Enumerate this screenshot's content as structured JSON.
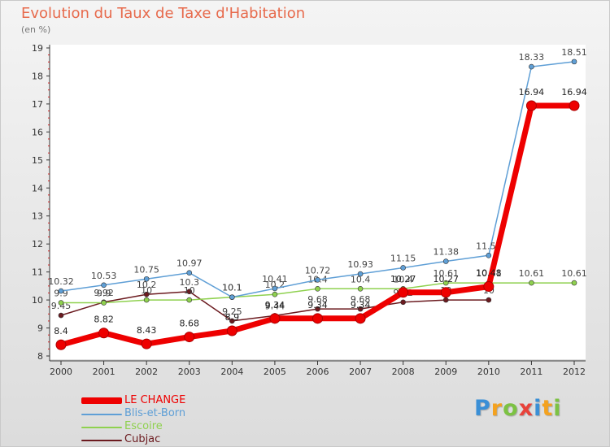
{
  "title": "Evolution du Taux de Taxe d'Habitation",
  "subtitle": "(en %)",
  "logo": {
    "text": "Proxiti",
    "letters": [
      {
        "ch": "P",
        "color": "#3a8fd6"
      },
      {
        "ch": "r",
        "color": "#f4a21f"
      },
      {
        "ch": "o",
        "color": "#7cc243"
      },
      {
        "ch": "x",
        "color": "#e8423a"
      },
      {
        "ch": "i",
        "color": "#3a8fd6"
      },
      {
        "ch": "t",
        "color": "#f4a21f"
      },
      {
        "ch": "i",
        "color": "#7cc243"
      }
    ]
  },
  "chart_data": {
    "type": "line",
    "x": [
      "2000",
      "2001",
      "2002",
      "2003",
      "2004",
      "2005",
      "2006",
      "2007",
      "2008",
      "2009",
      "2010",
      "2011",
      "2012"
    ],
    "ylim": [
      8,
      19
    ],
    "yticks": [
      8,
      9,
      10,
      11,
      12,
      13,
      14,
      15,
      16,
      17,
      18,
      19
    ],
    "grid": false,
    "legend_position": "bottom-left",
    "series": [
      {
        "name": "Cubjac",
        "color": "#6b1a1f",
        "values": [
          9.45,
          9.92,
          10.2,
          10.3,
          9.25,
          9.44,
          9.68,
          9.68,
          9.92,
          10,
          10,
          null,
          null
        ],
        "labels": [
          "9.45",
          "9.92",
          "10.2",
          "10.3",
          "9.25",
          "9.44",
          "9.68",
          "9.68",
          "9.92",
          "10",
          "10",
          null,
          null
        ]
      },
      {
        "name": "Escoire",
        "color": "#8fd14f",
        "values": [
          9.9,
          9.9,
          10,
          10,
          10.1,
          10.2,
          10.4,
          10.4,
          10.4,
          10.61,
          10.61,
          10.61,
          10.61
        ],
        "labels": [
          "9.9",
          "9.9",
          "10",
          "10",
          "10.1",
          "10.2",
          "10.4",
          "10.4",
          "10.4",
          "10.61",
          "10.61",
          "10.61",
          "10.61"
        ]
      },
      {
        "name": "Blis-et-Born",
        "color": "#5f9fd6",
        "values": [
          10.32,
          10.53,
          10.75,
          10.97,
          10.1,
          10.41,
          10.72,
          10.93,
          11.15,
          11.38,
          11.59,
          18.33,
          18.51
        ],
        "labels": [
          "10.32",
          "10.53",
          "10.75",
          "10.97",
          "10.1",
          "10.41",
          "10.72",
          "10.93",
          "11.15",
          "11.38",
          "11.59",
          "18.33",
          "18.51"
        ]
      },
      {
        "name": "LE CHANGE",
        "color": "#ee0000",
        "values": [
          8.4,
          8.82,
          8.43,
          8.68,
          8.9,
          9.34,
          9.34,
          9.34,
          10.27,
          10.27,
          10.48,
          16.94,
          16.94
        ],
        "labels": [
          "8.4",
          "8.82",
          "8.43",
          "8.68",
          "8.9",
          "9.34",
          "9.34",
          "9.34",
          "10.27",
          "10.27",
          "10.48",
          "16.94",
          "16.94"
        ]
      }
    ]
  }
}
